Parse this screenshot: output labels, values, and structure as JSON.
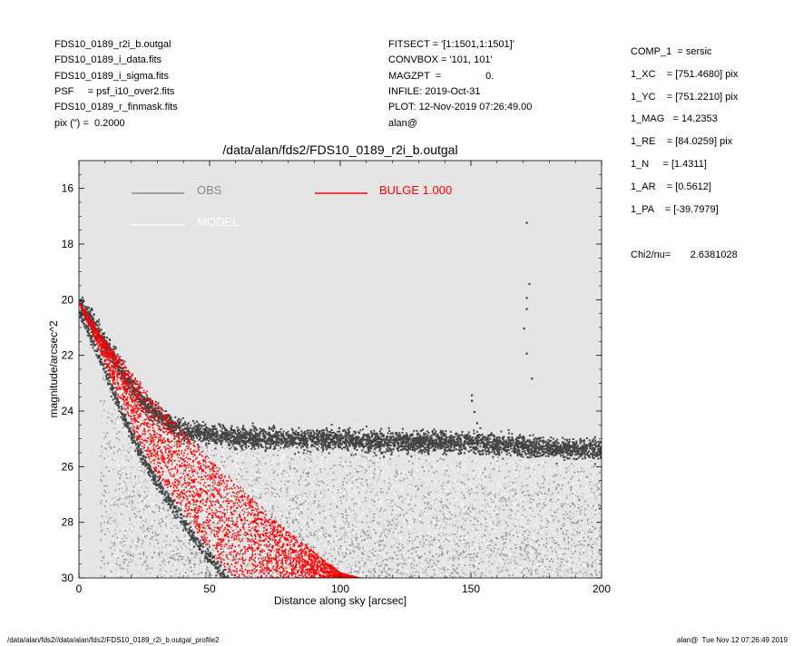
{
  "header_left": [
    "FDS10_0189_r2i_b.outgal",
    "FDS10_0189_i_data.fits",
    "FDS10_0189_i_sigma.fits",
    "PSF     = psf_i10_over2.fits",
    "FDS10_0189_r_finmask.fits",
    "pix (\") =  0.2000"
  ],
  "header_mid": [
    "FITSECT = '[1:1501,1:1501]'",
    "CONVBOX = '101, 101'",
    "MAGZPT  =                0.",
    "INFILE: 2019-Oct-31",
    "PLOT: 12-Nov-2019 07:26:49.00",
    "alan@"
  ],
  "params": [
    "COMP_1  = sersic",
    "1_XC    = [751.4680] pix",
    "1_YC    = [751.2210] pix",
    "1_MAG   = 14.2353",
    "1_RE    = [84.0259] pix",
    "1_N     = [1.4311]",
    "1_AR    = [0.5612]",
    "1_PA    = [-39.7979]"
  ],
  "chi2": "Chi2/nu=       2.6381028",
  "footer_left": "/data/alan/fds2//data/alan/fds2/FDS10_0189_r2i_b.outgal_profile2",
  "footer_right": "alan@  Tue Nov 12 07:26:49 2019",
  "colors": {
    "plot_bg": "#e5e5e5",
    "obs": "#888888",
    "model": "#ffffff",
    "bulge": "#ff0000",
    "dark_points": "#444444"
  },
  "chart_data": {
    "type": "scatter",
    "title": "/data/alan/fds2/FDS10_0189_r2i_b.outgal",
    "xlabel": "Distance along sky [arcsec]",
    "ylabel": "magnitude/arcsec^2",
    "xlim": [
      0,
      200
    ],
    "ylim": [
      30,
      15
    ],
    "y_inverted": true,
    "xticks": [
      "0",
      "50",
      "100",
      "150",
      "200"
    ],
    "yticks": [
      "16",
      "18",
      "20",
      "22",
      "24",
      "26",
      "28",
      "30"
    ],
    "xtick_values": [
      0,
      50,
      100,
      150,
      200
    ],
    "ytick_values": [
      16,
      18,
      20,
      22,
      24,
      26,
      28,
      30
    ],
    "legend": [
      {
        "label": "OBS",
        "color": "#888888"
      },
      {
        "label": "MODEL",
        "color": "#ffffff"
      },
      {
        "label": "BULGE  1.000",
        "color": "#ff0000"
      }
    ],
    "series": [
      {
        "name": "OBS",
        "description_points": "dark band",
        "x": [
          0,
          5,
          10,
          15,
          20,
          25,
          30,
          35,
          40,
          50,
          60,
          80,
          100,
          120,
          140,
          160,
          180,
          200
        ],
        "y": [
          20.1,
          20.8,
          21.6,
          22.4,
          23.1,
          23.7,
          24.1,
          24.5,
          24.7,
          24.8,
          24.9,
          25.0,
          25.0,
          25.1,
          25.1,
          25.2,
          25.3,
          25.4
        ]
      },
      {
        "name": "BULGE  1.000",
        "x_inner": [
          0,
          10,
          20,
          30,
          40,
          50,
          60,
          80,
          100,
          108
        ],
        "y_inner": [
          20.1,
          21.5,
          22.6,
          23.7,
          24.7,
          25.7,
          26.6,
          28.3,
          29.8,
          30.0
        ],
        "x_outer": [
          0,
          10,
          15,
          20,
          25,
          30,
          35,
          40,
          45,
          50,
          55,
          60
        ],
        "y_outer": [
          20.1,
          22.3,
          23.5,
          24.6,
          25.5,
          26.3,
          27.0,
          27.7,
          28.4,
          29.0,
          29.6,
          30.0
        ]
      }
    ],
    "outliers": {
      "x": [
        171,
        172,
        171,
        171,
        170,
        171,
        173,
        150,
        150,
        151,
        152
      ],
      "y": [
        17.2,
        19.4,
        19.9,
        20.3,
        21.0,
        21.9,
        22.8,
        23.4,
        23.6,
        24.0,
        24.4
      ]
    }
  }
}
